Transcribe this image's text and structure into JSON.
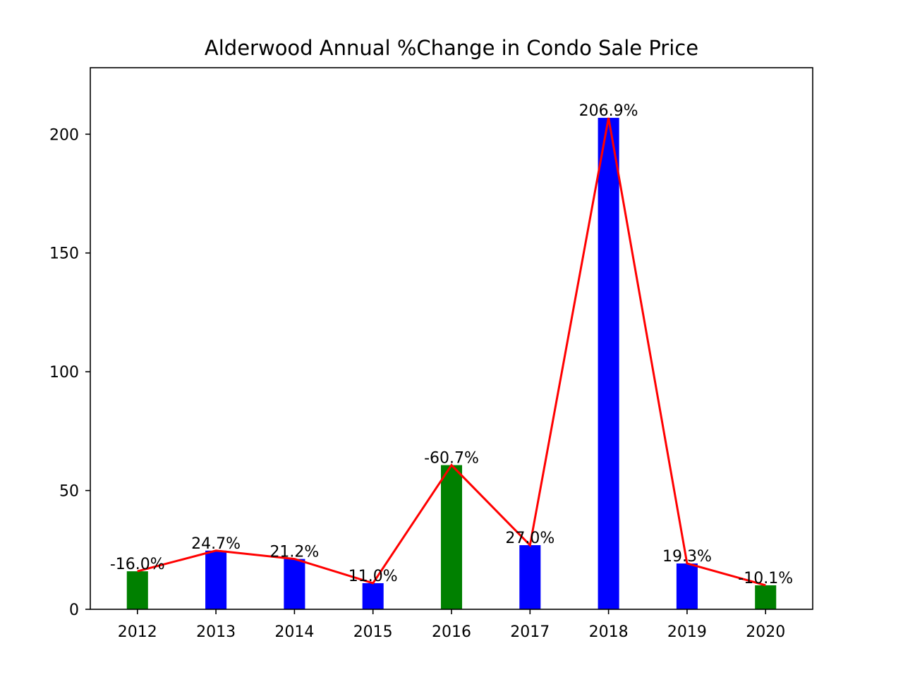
{
  "chart_data": {
    "type": "bar",
    "title": "Alderwood Annual %Change in Condo Sale Price",
    "xlabel": "",
    "ylabel": "",
    "categories": [
      "2012",
      "2013",
      "2014",
      "2015",
      "2016",
      "2017",
      "2018",
      "2019",
      "2020"
    ],
    "values": [
      16.0,
      24.7,
      21.2,
      11.0,
      60.7,
      27.0,
      206.9,
      19.3,
      10.1
    ],
    "data_labels": [
      "-16.0%",
      "24.7%",
      "21.2%",
      "11.0%",
      "-60.7%",
      "27.0%",
      "206.9%",
      "19.3%",
      "-10.1%"
    ],
    "bar_colors": [
      "#008000",
      "#0000ff",
      "#0000ff",
      "#0000ff",
      "#008000",
      "#0000ff",
      "#0000ff",
      "#0000ff",
      "#008000"
    ],
    "line_color": "#ff0000",
    "overlay": "line through bar tops",
    "ylim": [
      0,
      228
    ],
    "yticks": [
      0,
      50,
      100,
      150,
      200
    ],
    "grid": false,
    "legend": "none"
  }
}
